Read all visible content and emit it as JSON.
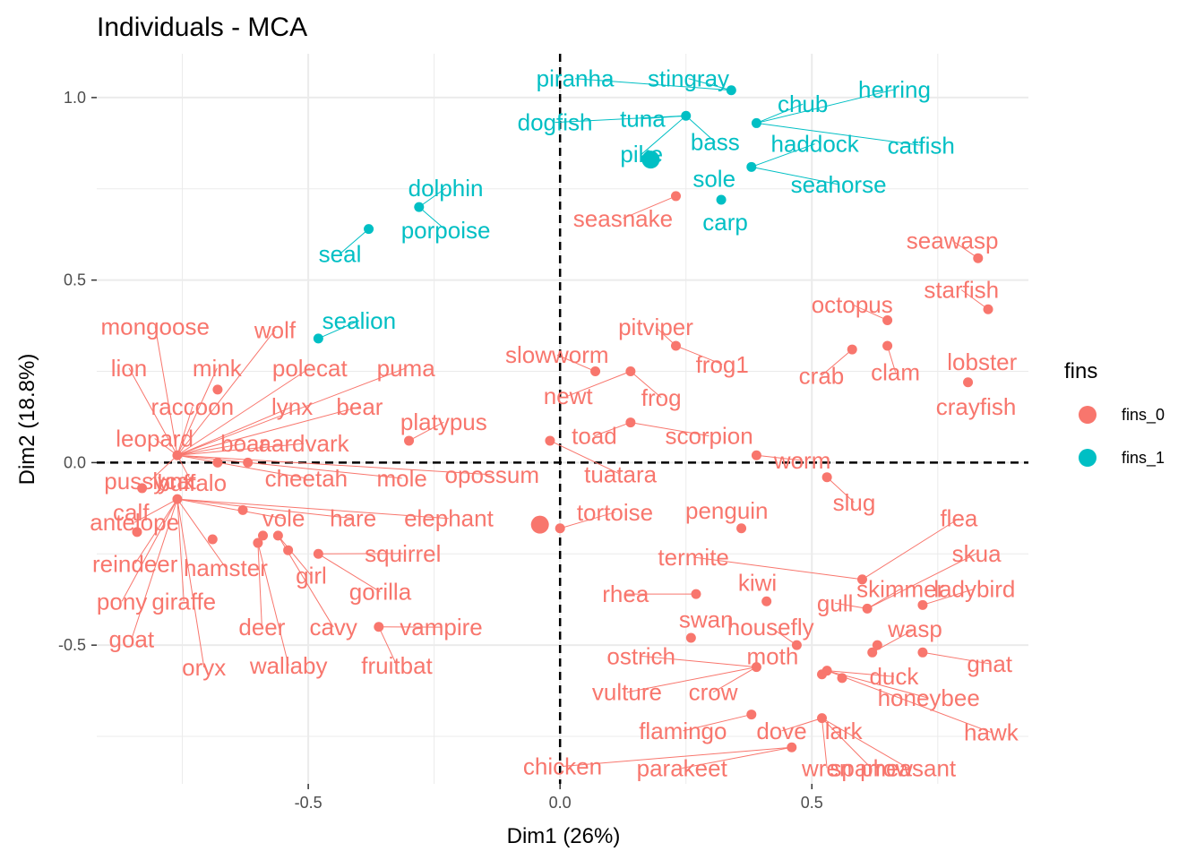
{
  "chart_data": {
    "type": "scatter",
    "title": "Individuals - MCA",
    "xlabel": "Dim1 (26%)",
    "ylabel": "Dim2 (18.8%)",
    "xlim": [
      -0.92,
      0.93
    ],
    "ylim": [
      -0.88,
      1.12
    ],
    "xticks": [
      -0.5,
      0.0,
      0.5
    ],
    "xtick_labels": [
      "-0.5",
      "0.0",
      "0.5"
    ],
    "yticks": [
      -0.5,
      0.0,
      0.5,
      1.0
    ],
    "ytick_labels": [
      "-0.5",
      "0.0",
      "0.5",
      "1.0"
    ],
    "grid": true,
    "reference_lines": [
      {
        "axis": "x",
        "value": 0,
        "style": "dashed"
      },
      {
        "axis": "y",
        "value": 0,
        "style": "dashed"
      }
    ],
    "legend": {
      "title": "fins",
      "position": "right",
      "entries": [
        "fins_0",
        "fins_1"
      ]
    },
    "colors": {
      "fins_0": "#F8766D",
      "fins_1": "#00BFC4"
    },
    "centroids": [
      {
        "group": "fins_0",
        "x": -0.04,
        "y": -0.17
      },
      {
        "group": "fins_1",
        "x": 0.18,
        "y": 0.83
      }
    ],
    "points": [
      {
        "x": 0.34,
        "y": 1.02,
        "group": "fins_1",
        "members": [
          {
            "label": "piranha",
            "lx": 0.03,
            "ly": 1.052
          },
          {
            "label": "stingray",
            "lx": 0.255,
            "ly": 1.052
          }
        ]
      },
      {
        "x": 0.39,
        "y": 0.93,
        "group": "fins_1",
        "members": [
          {
            "label": "chub",
            "lx": 0.482,
            "ly": 0.982
          },
          {
            "label": "herring",
            "lx": 0.664,
            "ly": 1.022
          },
          {
            "label": "catfish",
            "lx": 0.717,
            "ly": 0.869
          }
        ]
      },
      {
        "x": 0.25,
        "y": 0.95,
        "group": "fins_1",
        "members": [
          {
            "label": "dogfish",
            "lx": -0.01,
            "ly": 0.932
          },
          {
            "label": "tuna",
            "lx": 0.164,
            "ly": 0.942
          },
          {
            "label": "pike",
            "lx": 0.162,
            "ly": 0.845
          },
          {
            "label": "bass",
            "lx": 0.308,
            "ly": 0.878
          }
        ]
      },
      {
        "x": 0.38,
        "y": 0.81,
        "group": "fins_1",
        "members": [
          {
            "label": "haddock",
            "lx": 0.506,
            "ly": 0.873
          },
          {
            "label": "seahorse",
            "lx": 0.553,
            "ly": 0.762
          }
        ]
      },
      {
        "x": 0.32,
        "y": 0.72,
        "group": "fins_1",
        "members": [
          {
            "label": "sole",
            "lx": 0.306,
            "ly": 0.778
          },
          {
            "label": "carp",
            "lx": 0.328,
            "ly": 0.659
          }
        ]
      },
      {
        "x": 0.23,
        "y": 0.73,
        "group": "fins_0",
        "members": [
          {
            "label": "seasnake",
            "lx": 0.125,
            "ly": 0.669
          }
        ]
      },
      {
        "x": -0.28,
        "y": 0.7,
        "group": "fins_1",
        "members": [
          {
            "label": "dolphin",
            "lx": -0.227,
            "ly": 0.752
          },
          {
            "label": "porpoise",
            "lx": -0.227,
            "ly": 0.637
          }
        ]
      },
      {
        "x": -0.38,
        "y": 0.64,
        "group": "fins_1",
        "members": [
          {
            "label": "seal",
            "lx": -0.437,
            "ly": 0.572
          }
        ]
      },
      {
        "x": -0.48,
        "y": 0.34,
        "group": "fins_1",
        "members": [
          {
            "label": "sealion",
            "lx": -0.399,
            "ly": 0.389
          }
        ]
      },
      {
        "x": 0.83,
        "y": 0.56,
        "group": "fins_0",
        "members": [
          {
            "label": "seawasp",
            "lx": 0.779,
            "ly": 0.608
          }
        ]
      },
      {
        "x": 0.85,
        "y": 0.42,
        "group": "fins_0",
        "members": [
          {
            "label": "starfish",
            "lx": 0.797,
            "ly": 0.473
          }
        ]
      },
      {
        "x": 0.65,
        "y": 0.39,
        "group": "fins_0",
        "members": [
          {
            "label": "octopus",
            "lx": 0.58,
            "ly": 0.433
          }
        ]
      },
      {
        "x": 0.58,
        "y": 0.31,
        "group": "fins_0",
        "members": [
          {
            "label": "crab",
            "lx": 0.519,
            "ly": 0.238
          }
        ]
      },
      {
        "x": 0.65,
        "y": 0.32,
        "group": "fins_0",
        "members": [
          {
            "label": "clam",
            "lx": 0.666,
            "ly": 0.248
          }
        ]
      },
      {
        "x": 0.81,
        "y": 0.22,
        "group": "fins_0",
        "members": [
          {
            "label": "lobster",
            "lx": 0.838,
            "ly": 0.276
          },
          {
            "label": "crayfish",
            "lx": 0.826,
            "ly": 0.153
          }
        ]
      },
      {
        "x": 0.23,
        "y": 0.32,
        "group": "fins_0",
        "members": [
          {
            "label": "pitviper",
            "lx": 0.19,
            "ly": 0.371
          },
          {
            "label": "frog1",
            "lx": 0.322,
            "ly": 0.269
          }
        ]
      },
      {
        "x": 0.07,
        "y": 0.25,
        "group": "fins_0",
        "members": [
          {
            "label": "slowworm",
            "lx": -0.006,
            "ly": 0.295
          }
        ]
      },
      {
        "x": 0.14,
        "y": 0.25,
        "group": "fins_0",
        "members": [
          {
            "label": "newt",
            "lx": 0.016,
            "ly": 0.183
          },
          {
            "label": "frog",
            "lx": 0.201,
            "ly": 0.178
          }
        ]
      },
      {
        "x": 0.14,
        "y": 0.11,
        "group": "fins_0",
        "members": [
          {
            "label": "toad",
            "lx": 0.068,
            "ly": 0.073
          },
          {
            "label": "scorpion",
            "lx": 0.296,
            "ly": 0.073
          }
        ]
      },
      {
        "x": -0.02,
        "y": 0.06,
        "group": "fins_0",
        "members": [
          {
            "label": "tuatara",
            "lx": 0.12,
            "ly": -0.032
          }
        ]
      },
      {
        "x": 0.39,
        "y": 0.02,
        "group": "fins_0",
        "members": [
          {
            "label": "worm",
            "lx": 0.481,
            "ly": 0.006
          }
        ]
      },
      {
        "x": 0.53,
        "y": -0.04,
        "group": "fins_0",
        "members": [
          {
            "label": "slug",
            "lx": 0.584,
            "ly": -0.109
          }
        ]
      },
      {
        "x": 0.0,
        "y": -0.18,
        "group": "fins_0",
        "members": [
          {
            "label": "tortoise",
            "lx": 0.109,
            "ly": -0.136
          }
        ]
      },
      {
        "x": 0.36,
        "y": -0.18,
        "group": "fins_0",
        "members": [
          {
            "label": "penguin",
            "lx": 0.331,
            "ly": -0.131
          }
        ]
      },
      {
        "x": -0.3,
        "y": 0.06,
        "group": "fins_0",
        "members": [
          {
            "label": "platypus",
            "lx": -0.231,
            "ly": 0.111
          }
        ]
      },
      {
        "x": -0.76,
        "y": 0.02,
        "group": "fins_0",
        "members": [
          {
            "label": "mongoose",
            "lx": -0.804,
            "ly": 0.373
          },
          {
            "label": "wolf",
            "lx": -0.566,
            "ly": 0.363
          },
          {
            "label": "lion",
            "lx": -0.856,
            "ly": 0.259
          },
          {
            "label": "mink",
            "lx": -0.681,
            "ly": 0.259
          },
          {
            "label": "polecat",
            "lx": -0.497,
            "ly": 0.259
          },
          {
            "label": "puma",
            "lx": -0.306,
            "ly": 0.259
          },
          {
            "label": "raccoon",
            "lx": -0.73,
            "ly": 0.153
          },
          {
            "label": "lynx",
            "lx": -0.532,
            "ly": 0.153
          },
          {
            "label": "bear",
            "lx": -0.398,
            "ly": 0.153
          },
          {
            "label": "leopard",
            "lx": -0.805,
            "ly": 0.066
          },
          {
            "label": "boar",
            "lx": -0.628,
            "ly": 0.052
          },
          {
            "label": "aardvark",
            "lx": -0.509,
            "ly": 0.052
          },
          {
            "label": "cheetah",
            "lx": -0.504,
            "ly": -0.043
          },
          {
            "label": "mole",
            "lx": -0.314,
            "ly": -0.043
          },
          {
            "label": "opossum",
            "lx": -0.135,
            "ly": -0.033
          },
          {
            "label": "pussycat",
            "lx": -0.814,
            "ly": -0.05
          },
          {
            "label": "lynx",
            "lx": -0.768,
            "ly": -0.05
          },
          {
            "label": "buffalo",
            "lx": -0.731,
            "ly": -0.055
          }
        ]
      },
      {
        "x": -0.68,
        "y": 0.2,
        "group": "fins_0",
        "members": []
      },
      {
        "x": -0.68,
        "y": 0.0,
        "group": "fins_0",
        "members": []
      },
      {
        "x": -0.62,
        "y": 0.0,
        "group": "fins_0",
        "members": []
      },
      {
        "x": -0.83,
        "y": -0.07,
        "group": "fins_0",
        "members": [
          {
            "label": "calf",
            "lx": -0.852,
            "ly": -0.136
          }
        ]
      },
      {
        "x": -0.76,
        "y": -0.1,
        "group": "fins_0",
        "members": [
          {
            "label": "antelope",
            "lx": -0.845,
            "ly": -0.164
          },
          {
            "label": "vole",
            "lx": -0.549,
            "ly": -0.153
          },
          {
            "label": "hare",
            "lx": -0.411,
            "ly": -0.153
          },
          {
            "label": "elephant",
            "lx": -0.221,
            "ly": -0.153
          },
          {
            "label": "reindeer",
            "lx": -0.844,
            "ly": -0.277
          },
          {
            "label": "hamster",
            "lx": -0.664,
            "ly": -0.288
          },
          {
            "label": "pony",
            "lx": -0.87,
            "ly": -0.38
          },
          {
            "label": "giraffe",
            "lx": -0.747,
            "ly": -0.38
          },
          {
            "label": "goat",
            "lx": -0.851,
            "ly": -0.484
          },
          {
            "label": "oryx",
            "lx": -0.707,
            "ly": -0.561
          }
        ]
      },
      {
        "x": -0.84,
        "y": -0.19,
        "group": "fins_0",
        "members": []
      },
      {
        "x": -0.69,
        "y": -0.21,
        "group": "fins_0",
        "members": []
      },
      {
        "x": -0.63,
        "y": -0.13,
        "group": "fins_0",
        "members": []
      },
      {
        "x": -0.6,
        "y": -0.22,
        "group": "fins_0",
        "members": [
          {
            "label": "deer",
            "lx": -0.592,
            "ly": -0.451
          },
          {
            "label": "wallaby",
            "lx": -0.539,
            "ly": -0.556
          }
        ]
      },
      {
        "x": -0.59,
        "y": -0.2,
        "group": "fins_0",
        "members": []
      },
      {
        "x": -0.56,
        "y": -0.2,
        "group": "fins_0",
        "members": [
          {
            "label": "girl",
            "lx": -0.494,
            "ly": -0.31
          },
          {
            "label": "cavy",
            "lx": -0.45,
            "ly": -0.451
          }
        ]
      },
      {
        "x": -0.54,
        "y": -0.24,
        "group": "fins_0",
        "members": []
      },
      {
        "x": -0.48,
        "y": -0.25,
        "group": "fins_0",
        "members": [
          {
            "label": "squirrel",
            "lx": -0.312,
            "ly": -0.249
          },
          {
            "label": "gorilla",
            "lx": -0.357,
            "ly": -0.354
          }
        ]
      },
      {
        "x": -0.36,
        "y": -0.45,
        "group": "fins_0",
        "members": [
          {
            "label": "vampire",
            "lx": -0.236,
            "ly": -0.451
          },
          {
            "label": "fruitbat",
            "lx": -0.324,
            "ly": -0.556
          }
        ]
      },
      {
        "x": 0.27,
        "y": -0.36,
        "group": "fins_0",
        "members": [
          {
            "label": "rhea",
            "lx": 0.13,
            "ly": -0.36
          }
        ]
      },
      {
        "x": 0.41,
        "y": -0.38,
        "group": "fins_0",
        "members": [
          {
            "label": "kiwi",
            "lx": 0.392,
            "ly": -0.329
          }
        ]
      },
      {
        "x": 0.6,
        "y": -0.32,
        "group": "fins_0",
        "members": [
          {
            "label": "termite",
            "lx": 0.265,
            "ly": -0.259
          },
          {
            "label": "flea",
            "lx": 0.792,
            "ly": -0.153
          }
        ]
      },
      {
        "x": 0.61,
        "y": -0.4,
        "group": "fins_0",
        "members": [
          {
            "label": "gull",
            "lx": 0.546,
            "ly": -0.385
          },
          {
            "label": "skimmer",
            "lx": 0.676,
            "ly": -0.346
          },
          {
            "label": "skua",
            "lx": 0.827,
            "ly": -0.249
          }
        ]
      },
      {
        "x": 0.72,
        "y": -0.39,
        "group": "fins_0",
        "members": [
          {
            "label": "ladybird",
            "lx": 0.823,
            "ly": -0.346
          }
        ]
      },
      {
        "x": 0.26,
        "y": -0.48,
        "group": "fins_0",
        "members": [
          {
            "label": "swan",
            "lx": 0.29,
            "ly": -0.43
          }
        ]
      },
      {
        "x": 0.47,
        "y": -0.5,
        "group": "fins_0",
        "members": [
          {
            "label": "housefly",
            "lx": 0.418,
            "ly": -0.451
          }
        ]
      },
      {
        "x": 0.62,
        "y": -0.52,
        "group": "fins_0",
        "members": [
          {
            "label": "wasp",
            "lx": 0.705,
            "ly": -0.456
          }
        ]
      },
      {
        "x": 0.63,
        "y": -0.5,
        "group": "fins_0",
        "members": []
      },
      {
        "x": 0.72,
        "y": -0.52,
        "group": "fins_0",
        "members": [
          {
            "label": "gnat",
            "lx": 0.853,
            "ly": -0.551
          }
        ]
      },
      {
        "x": 0.39,
        "y": -0.56,
        "group": "fins_0",
        "members": [
          {
            "label": "ostrich",
            "lx": 0.161,
            "ly": -0.53
          },
          {
            "label": "moth",
            "lx": 0.422,
            "ly": -0.53
          },
          {
            "label": "vulture",
            "lx": 0.133,
            "ly": -0.629
          },
          {
            "label": "crow",
            "lx": 0.304,
            "ly": -0.629
          }
        ]
      },
      {
        "x": 0.53,
        "y": -0.57,
        "group": "fins_0",
        "members": [
          {
            "label": "duck",
            "lx": 0.663,
            "ly": -0.586
          },
          {
            "label": "honeybee",
            "lx": 0.732,
            "ly": -0.645
          },
          {
            "label": "hawk",
            "lx": 0.856,
            "ly": -0.739
          }
        ]
      },
      {
        "x": 0.52,
        "y": -0.58,
        "group": "fins_0",
        "members": []
      },
      {
        "x": 0.56,
        "y": -0.59,
        "group": "fins_0",
        "members": []
      },
      {
        "x": 0.38,
        "y": -0.69,
        "group": "fins_0",
        "members": [
          {
            "label": "flamingo",
            "lx": 0.244,
            "ly": -0.735
          }
        ]
      },
      {
        "x": 0.52,
        "y": -0.7,
        "group": "fins_0",
        "members": [
          {
            "label": "dove",
            "lx": 0.44,
            "ly": -0.735
          },
          {
            "label": "lark",
            "lx": 0.563,
            "ly": -0.735
          },
          {
            "label": "wren",
            "lx": 0.53,
            "ly": -0.837
          },
          {
            "label": "sparrow",
            "lx": 0.618,
            "ly": -0.837
          },
          {
            "label": "pheasant",
            "lx": 0.691,
            "ly": -0.837
          }
        ]
      },
      {
        "x": 0.46,
        "y": -0.78,
        "group": "fins_0",
        "members": [
          {
            "label": "chicken",
            "lx": 0.005,
            "ly": -0.832
          },
          {
            "label": "parakeet",
            "lx": 0.242,
            "ly": -0.837
          }
        ]
      }
    ]
  }
}
